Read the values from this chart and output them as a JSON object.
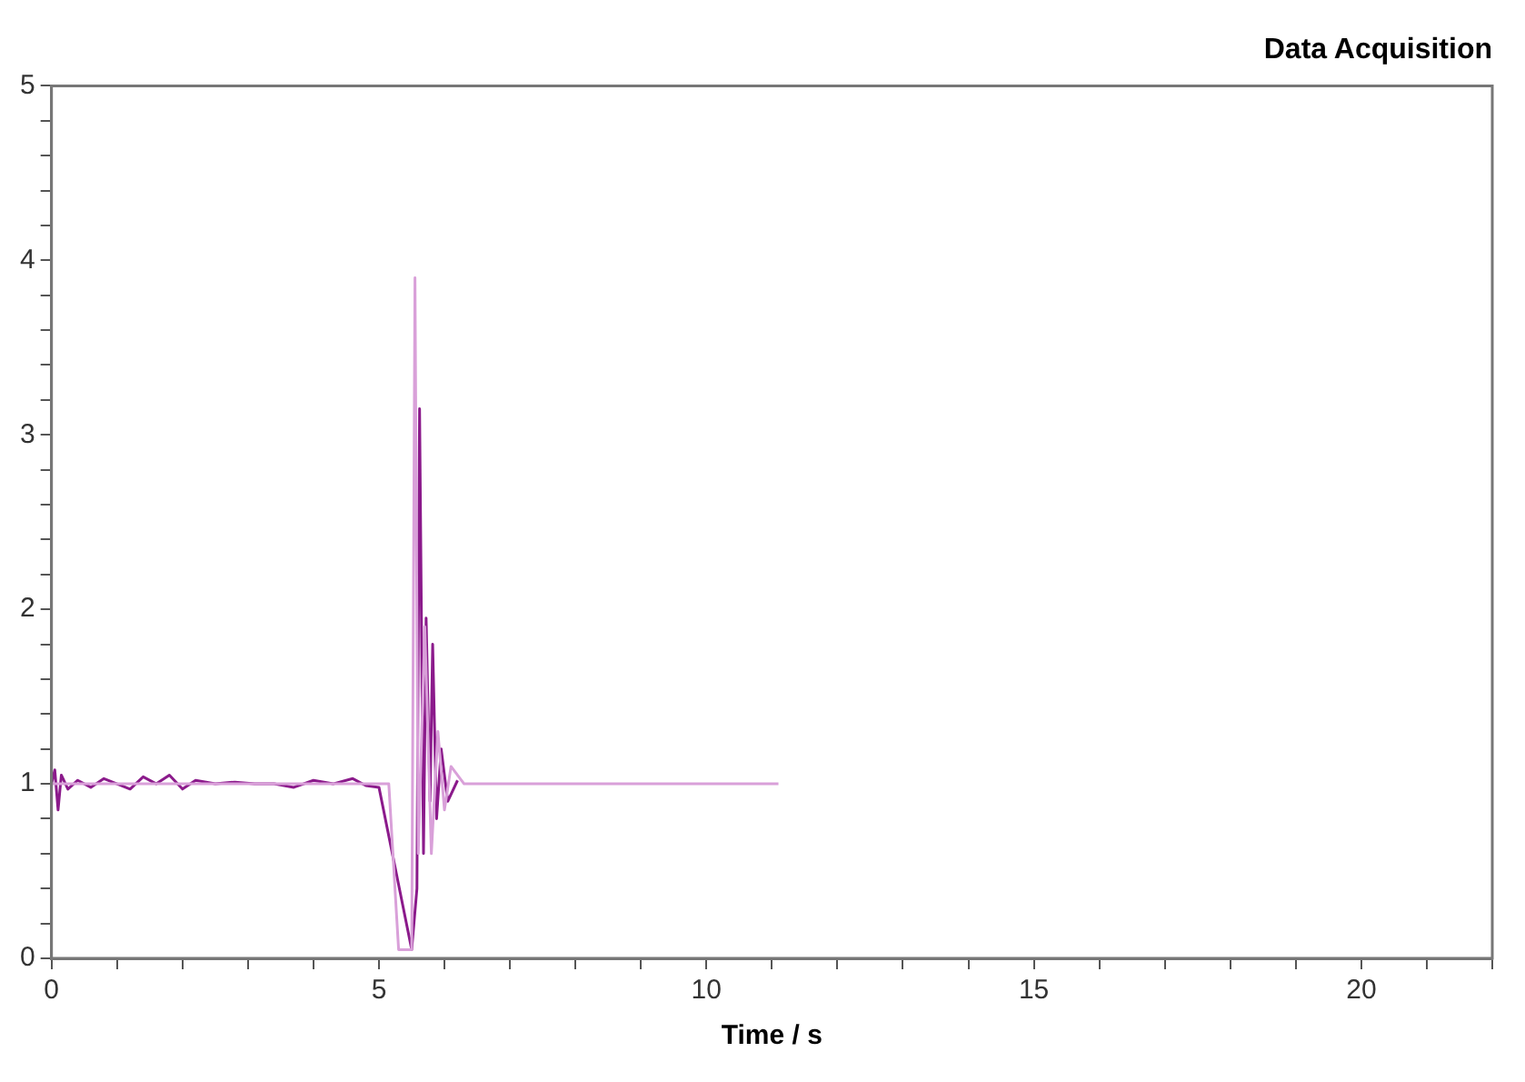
{
  "chart_data": {
    "type": "line",
    "title": "Data Acquisition",
    "xlabel": "Time / s",
    "xlim": [
      0,
      22
    ],
    "xticks": [
      0,
      {
        "value": 1,
        "label": null
      },
      {
        "value": 2,
        "label": null
      },
      {
        "value": 3,
        "label": null
      },
      {
        "value": 4,
        "label": null
      },
      5,
      {
        "value": 6,
        "label": null
      },
      {
        "value": 7,
        "label": null
      },
      {
        "value": 8,
        "label": null
      },
      {
        "value": 9,
        "label": null
      },
      10,
      {
        "value": 11,
        "label": null
      },
      {
        "value": 12,
        "label": null
      },
      {
        "value": 13,
        "label": null
      },
      {
        "value": 14,
        "label": null
      },
      15,
      {
        "value": 16,
        "label": null
      },
      {
        "value": 17,
        "label": null
      },
      {
        "value": 18,
        "label": null
      },
      {
        "value": 19,
        "label": null
      },
      20,
      {
        "value": 21,
        "label": null
      },
      {
        "value": 22,
        "label": null
      }
    ],
    "ylim": [
      0,
      5
    ],
    "yticks": [
      0,
      {
        "value": 0.2,
        "label": null
      },
      {
        "value": 0.4,
        "label": null
      },
      {
        "value": 0.6,
        "label": null
      },
      {
        "value": 0.8,
        "label": null
      },
      1,
      {
        "value": 1.2,
        "label": null
      },
      {
        "value": 1.4,
        "label": null
      },
      {
        "value": 1.6,
        "label": null
      },
      {
        "value": 1.8,
        "label": null
      },
      2,
      {
        "value": 2.2,
        "label": null
      },
      {
        "value": 2.4,
        "label": null
      },
      {
        "value": 2.6,
        "label": null
      },
      {
        "value": 2.8,
        "label": null
      },
      3,
      {
        "value": 3.2,
        "label": null
      },
      {
        "value": 3.4,
        "label": null
      },
      {
        "value": 3.6,
        "label": null
      },
      {
        "value": 3.8,
        "label": null
      },
      4,
      {
        "value": 4.2,
        "label": null
      },
      {
        "value": 4.4,
        "label": null
      },
      {
        "value": 4.6,
        "label": null
      },
      {
        "value": 4.8,
        "label": null
      },
      5
    ],
    "grid": false,
    "legend": false,
    "marker": "none",
    "line_style": "solid",
    "series": [
      {
        "color": "#d9a0d9",
        "x": [
          0,
          1,
          2,
          3,
          4,
          5,
          5.15,
          5.3,
          5.5,
          5.55,
          5.6,
          5.7,
          5.8,
          5.9,
          6.0,
          6.1,
          6.3,
          8,
          10,
          11.1
        ],
        "values": [
          1.0,
          1.0,
          1.0,
          1.0,
          1.0,
          1.0,
          1.0,
          0.05,
          0.05,
          3.9,
          0.6,
          1.9,
          0.6,
          1.3,
          0.85,
          1.1,
          1.0,
          1.0,
          1.0,
          1.0
        ]
      },
      {
        "color": "#8b1a8b",
        "x": [
          0,
          0.05,
          0.1,
          0.15,
          0.25,
          0.4,
          0.6,
          0.8,
          1.0,
          1.2,
          1.4,
          1.6,
          1.8,
          2.0,
          2.2,
          2.5,
          2.8,
          3.1,
          3.4,
          3.7,
          4.0,
          4.3,
          4.6,
          4.8,
          5.0,
          5.5,
          5.58,
          5.62,
          5.68,
          5.72,
          5.78,
          5.82,
          5.88,
          5.95,
          6.05,
          6.2
        ],
        "values": [
          1.0,
          1.08,
          0.85,
          1.05,
          0.97,
          1.02,
          0.98,
          1.03,
          1.0,
          0.97,
          1.04,
          1.0,
          1.05,
          0.97,
          1.02,
          1.0,
          1.01,
          1.0,
          1.0,
          0.98,
          1.02,
          1.0,
          1.03,
          0.99,
          0.98,
          0.05,
          0.4,
          3.15,
          0.6,
          1.95,
          0.9,
          1.8,
          0.8,
          1.2,
          0.9,
          1.02
        ]
      }
    ]
  }
}
